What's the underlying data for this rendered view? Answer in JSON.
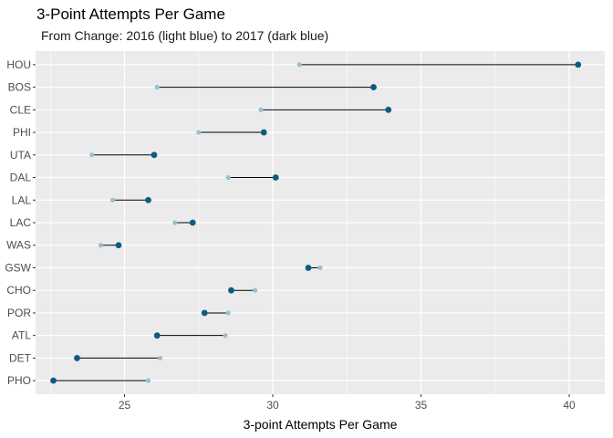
{
  "chart_data": {
    "type": "dumbbell",
    "title": "3-Point Attempts Per Game",
    "subtitle": "From Change: 2016 (light blue) to 2017 (dark blue)",
    "xlabel": "3-point Attempts Per Game",
    "ylabel": "",
    "xlim": [
      22.0,
      41.2
    ],
    "x_ticks": [
      25,
      30,
      35,
      40
    ],
    "grid": true,
    "categories": [
      "HOU",
      "BOS",
      "CLE",
      "PHI",
      "UTA",
      "DAL",
      "LAL",
      "LAC",
      "WAS",
      "GSW",
      "CHO",
      "POR",
      "ATL",
      "DET",
      "PHO"
    ],
    "series": [
      {
        "name": "2016",
        "color": "#99bfd3",
        "values": [
          30.9,
          26.1,
          29.6,
          27.5,
          23.9,
          28.5,
          24.6,
          26.7,
          24.2,
          31.6,
          29.4,
          28.5,
          28.4,
          26.2,
          25.8
        ]
      },
      {
        "name": "2017",
        "color": "#0c5d7e",
        "values": [
          40.3,
          33.4,
          33.9,
          29.7,
          26.0,
          30.1,
          25.8,
          27.3,
          24.8,
          31.2,
          28.6,
          27.7,
          26.1,
          23.4,
          22.6
        ]
      }
    ],
    "colors": {
      "panel_background": "#ebebeb",
      "grid_major": "#ffffff",
      "connector": "#000000"
    }
  }
}
